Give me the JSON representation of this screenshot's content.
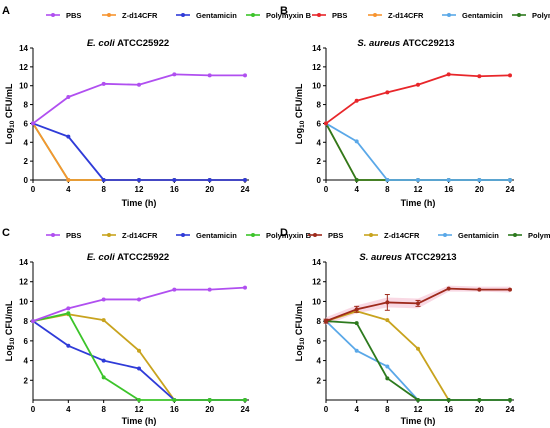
{
  "figure": {
    "colors": {
      "pbs_purple": "#b04ff0",
      "pbs_red": "#e8262a",
      "pbs_darkred": "#9e2a1c",
      "zd14cfr_orange": "#f79430",
      "zd14cfr_olive": "#c8a31e",
      "gentamicin_blue": "#2f3bd8",
      "gentamicin_lightblue": "#5aa8e8",
      "polymyxin_green": "#3cc42a",
      "polymyxin_darkgreen": "#2d7a1e",
      "band_pink": "#f7c9d9"
    }
  },
  "chart_data": [
    {
      "panel": "A",
      "type": "line",
      "title_italic": "E. coli",
      "title_rest": " ATCC25922",
      "xlabel": "Time (h)",
      "ylabel_prefix": "Log",
      "ylabel_sub": "10",
      "ylabel_suffix": " CFU/mL",
      "xlim": [
        0,
        24
      ],
      "ylim": [
        0,
        14
      ],
      "xticks": [
        0,
        4,
        8,
        12,
        16,
        20,
        24
      ],
      "yticks": [
        0,
        2,
        4,
        6,
        8,
        10,
        12,
        14
      ],
      "legend": [
        "PBS",
        "Z-d14CFR",
        "Gentamicin",
        "Polymyxin B"
      ],
      "legend_colors": [
        "#b04ff0",
        "#f79430",
        "#2f3bd8",
        "#3cc42a"
      ],
      "series": [
        {
          "name": "Polymyxin B",
          "color": "#3cc42a",
          "x": [
            0,
            4,
            8,
            12,
            16,
            20,
            24
          ],
          "y": [
            6.0,
            0,
            0,
            0,
            0,
            0,
            0
          ]
        },
        {
          "name": "Z-d14CFR",
          "color": "#f79430",
          "x": [
            0,
            4,
            8,
            12,
            16,
            20,
            24
          ],
          "y": [
            6.0,
            0,
            0,
            0,
            0,
            0,
            0
          ]
        },
        {
          "name": "Gentamicin",
          "color": "#2f3bd8",
          "x": [
            0,
            4,
            8,
            12,
            16,
            20,
            24
          ],
          "y": [
            6.0,
            4.6,
            0,
            0,
            0,
            0,
            0
          ]
        },
        {
          "name": "PBS",
          "color": "#b04ff0",
          "x": [
            0,
            4,
            8,
            12,
            16,
            20,
            24
          ],
          "y": [
            6.0,
            8.8,
            10.2,
            10.1,
            11.2,
            11.1,
            11.1
          ]
        }
      ]
    },
    {
      "panel": "B",
      "type": "line",
      "title_italic": "S. aureus",
      "title_rest": " ATCC29213",
      "xlabel": "Time (h)",
      "ylabel_prefix": "Log",
      "ylabel_sub": "10",
      "ylabel_suffix": " CFU/mL",
      "xlim": [
        0,
        24
      ],
      "ylim": [
        0,
        14
      ],
      "xticks": [
        0,
        4,
        8,
        12,
        16,
        20,
        24
      ],
      "yticks": [
        0,
        2,
        4,
        6,
        8,
        10,
        12,
        14
      ],
      "legend": [
        "PBS",
        "Z-d14CFR",
        "Gentamicin",
        "Polymyxin B"
      ],
      "legend_colors": [
        "#e8262a",
        "#f79430",
        "#5aa8e8",
        "#2d7a1e"
      ],
      "series": [
        {
          "name": "Z-d14CFR",
          "color": "#f79430",
          "x": [
            0,
            4,
            8,
            12,
            16,
            20,
            24
          ],
          "y": [
            6.0,
            0,
            0,
            0,
            0,
            0,
            0
          ]
        },
        {
          "name": "Polymyxin B",
          "color": "#2d7a1e",
          "x": [
            0,
            4,
            8,
            12,
            16,
            20,
            24
          ],
          "y": [
            6.0,
            0,
            0,
            0,
            0,
            0,
            0
          ]
        },
        {
          "name": "Gentamicin",
          "color": "#5aa8e8",
          "x": [
            0,
            4,
            8,
            12,
            16,
            20,
            24
          ],
          "y": [
            6.0,
            4.1,
            0,
            0,
            0,
            0,
            0
          ]
        },
        {
          "name": "PBS",
          "color": "#e8262a",
          "x": [
            0,
            4,
            8,
            12,
            16,
            20,
            24
          ],
          "y": [
            6.0,
            8.4,
            9.3,
            10.1,
            11.2,
            11.0,
            11.1
          ]
        }
      ]
    },
    {
      "panel": "C",
      "type": "line",
      "title_italic": "E. coli",
      "title_rest": " ATCC25922",
      "xlabel": "Time (h)",
      "ylabel_prefix": "Log",
      "ylabel_sub": "10",
      "ylabel_suffix": " CFU/mL",
      "xlim": [
        0,
        24
      ],
      "ylim": [
        0,
        14
      ],
      "xticks": [
        0,
        4,
        8,
        12,
        16,
        20,
        24
      ],
      "yticks": [
        2,
        4,
        6,
        8,
        10,
        12,
        14
      ],
      "legend": [
        "PBS",
        "Z-d14CFR",
        "Gentamicin",
        "Polymyxin B"
      ],
      "legend_colors": [
        "#b04ff0",
        "#c8a31e",
        "#2f3bd8",
        "#3cc42a"
      ],
      "series": [
        {
          "name": "Z-d14CFR",
          "color": "#c8a31e",
          "x": [
            0,
            4,
            8,
            12,
            16,
            20,
            24
          ],
          "y": [
            8.0,
            8.7,
            8.1,
            5.0,
            0,
            0,
            0
          ]
        },
        {
          "name": "Gentamicin",
          "color": "#2f3bd8",
          "x": [
            0,
            4,
            8,
            12,
            16,
            20,
            24
          ],
          "y": [
            8.0,
            5.5,
            4.0,
            3.2,
            0,
            0,
            0
          ]
        },
        {
          "name": "Polymyxin B",
          "color": "#3cc42a",
          "x": [
            0,
            4,
            8,
            12,
            16,
            20,
            24
          ],
          "y": [
            8.0,
            8.8,
            2.3,
            0,
            0,
            0,
            0
          ]
        },
        {
          "name": "PBS",
          "color": "#b04ff0",
          "x": [
            0,
            4,
            8,
            12,
            16,
            20,
            24
          ],
          "y": [
            8.0,
            9.3,
            10.2,
            10.2,
            11.2,
            11.2,
            11.4
          ]
        }
      ]
    },
    {
      "panel": "D",
      "type": "line",
      "title_italic": "S. aureus",
      "title_rest": " ATCC29213",
      "xlabel": "Time (h)",
      "ylabel_prefix": "Log",
      "ylabel_sub": "10",
      "ylabel_suffix": " CFU/mL",
      "xlim": [
        0,
        24
      ],
      "ylim": [
        0,
        14
      ],
      "xticks": [
        0,
        4,
        8,
        12,
        16,
        20,
        24
      ],
      "yticks": [
        2,
        4,
        6,
        8,
        10,
        12,
        14
      ],
      "legend": [
        "PBS",
        "Z-d14CFR",
        "Gentamicin",
        "Polymyxin B"
      ],
      "legend_colors": [
        "#9e2a1c",
        "#c8a31e",
        "#5aa8e8",
        "#2d7a1e"
      ],
      "band": {
        "x": [
          0,
          4,
          8,
          12,
          16,
          20,
          24
        ],
        "lower": [
          7.6,
          8.8,
          9.4,
          9.3,
          11.0,
          11.0,
          10.9
        ],
        "upper": [
          8.4,
          9.6,
          10.4,
          10.3,
          11.6,
          11.5,
          11.5
        ]
      },
      "series": [
        {
          "name": "Z-d14CFR",
          "color": "#c8a31e",
          "x": [
            0,
            4,
            8,
            12,
            16,
            20,
            24
          ],
          "y": [
            8.0,
            9.0,
            8.1,
            5.2,
            0,
            0,
            0
          ]
        },
        {
          "name": "Gentamicin",
          "color": "#5aa8e8",
          "x": [
            0,
            4,
            8,
            12,
            16,
            20,
            24
          ],
          "y": [
            8.0,
            5.0,
            3.4,
            0,
            0,
            0,
            0
          ]
        },
        {
          "name": "Polymyxin B",
          "color": "#2d7a1e",
          "x": [
            0,
            4,
            8,
            12,
            16,
            20,
            24
          ],
          "y": [
            8.0,
            7.8,
            2.2,
            0,
            0,
            0,
            0
          ]
        },
        {
          "name": "PBS",
          "color": "#9e2a1c",
          "x": [
            0,
            4,
            8,
            12,
            16,
            20,
            24
          ],
          "y": [
            8.0,
            9.2,
            9.9,
            9.8,
            11.3,
            11.2,
            11.2
          ],
          "err": [
            0.2,
            0.3,
            0.8,
            0.3,
            0.1,
            0.1,
            0.1
          ]
        }
      ]
    }
  ]
}
